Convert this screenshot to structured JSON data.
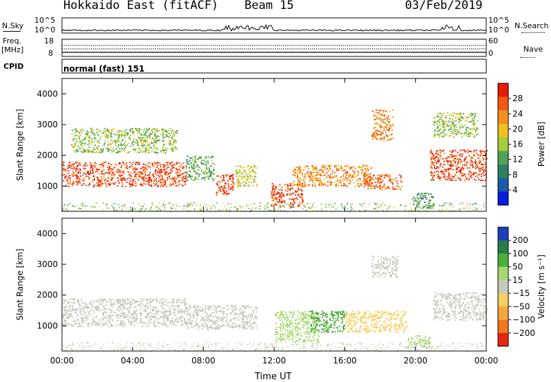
{
  "header": {
    "station": "Hokkaido East (fitACF)",
    "beam": "Beam 15",
    "date": "03/Feb/2019"
  },
  "params": {
    "nsky_label": "N.Sky",
    "nsky_ticks": [
      "10^5",
      "10^0"
    ],
    "nsearch_label": "N.Search",
    "nsearch_ticks": [
      "10^5",
      "10^0"
    ],
    "freq_label_line1": "Freq.",
    "freq_label_line2": "[MHz]",
    "freq_ticks": [
      "18",
      "8"
    ],
    "nave_label": "Nave",
    "nave_ticks": [
      "60",
      "0"
    ],
    "cpid_label": "CPID",
    "cpid_text": "normal (fast) 151"
  },
  "colors": {
    "power_scale": [
      "#0a1ae0",
      "#1f5aa8",
      "#2e8060",
      "#52a256",
      "#a4cd3c",
      "#f0c020",
      "#f39020",
      "#ee5a14",
      "#e81a0a"
    ],
    "velocity_scale": [
      "#1a3fb8",
      "#2a7a4a",
      "#4caf3a",
      "#a8d872",
      "#c8c8bc",
      "#f5d060",
      "#f4a640",
      "#f07820",
      "#e82412"
    ]
  },
  "chart_data": [
    {
      "type": "heatmap",
      "title": "Power",
      "xlabel": "Time UT",
      "ylabel": "Slant Range [km]",
      "x_ticks": [
        "00:00",
        "04:00",
        "08:00",
        "12:00",
        "16:00",
        "20:00",
        "00:00"
      ],
      "x_range_hours": [
        0,
        24
      ],
      "y_ticks": [
        1000,
        2000,
        3000,
        4000
      ],
      "ylim": [
        180,
        4500
      ],
      "colorbar_label": "Power [dB]",
      "colorbar_ticks": [
        "4",
        "8",
        "12",
        "16",
        "20",
        "24",
        "28"
      ],
      "clim": [
        0,
        30
      ],
      "regions": [
        {
          "t": [
            0.0,
            7.0
          ],
          "r": [
            1000,
            1800
          ],
          "value": 26
        },
        {
          "t": [
            0.5,
            6.5
          ],
          "r": [
            2100,
            2900
          ],
          "value": 14
        },
        {
          "t": [
            7.0,
            8.6
          ],
          "r": [
            1200,
            2000
          ],
          "value": 12
        },
        {
          "t": [
            8.7,
            9.7
          ],
          "r": [
            700,
            1400
          ],
          "value": 26
        },
        {
          "t": [
            9.8,
            11.0
          ],
          "r": [
            1000,
            1700
          ],
          "value": 16
        },
        {
          "t": [
            11.8,
            13.6
          ],
          "r": [
            350,
            1100
          ],
          "value": 26
        },
        {
          "t": [
            13.0,
            17.5
          ],
          "r": [
            1000,
            1700
          ],
          "value": 22
        },
        {
          "t": [
            17.0,
            19.2
          ],
          "r": [
            900,
            1400
          ],
          "value": 24
        },
        {
          "t": [
            17.5,
            18.7
          ],
          "r": [
            2500,
            3500
          ],
          "value": 22
        },
        {
          "t": [
            19.8,
            21.0
          ],
          "r": [
            300,
            800
          ],
          "value": 10
        },
        {
          "t": [
            20.8,
            24.0
          ],
          "r": [
            1200,
            2200
          ],
          "value": 26
        },
        {
          "t": [
            21.0,
            23.5
          ],
          "r": [
            2600,
            3400
          ],
          "value": 14
        }
      ]
    },
    {
      "type": "heatmap",
      "title": "Velocity",
      "xlabel": "Time UT",
      "ylabel": "Slant Range [km]",
      "x_ticks": [
        "00:00",
        "04:00",
        "08:00",
        "12:00",
        "16:00",
        "20:00",
        "00:00"
      ],
      "x_range_hours": [
        0,
        24
      ],
      "y_ticks": [
        1000,
        2000,
        3000,
        4000
      ],
      "ylim": [
        180,
        4500
      ],
      "colorbar_label": "Velocity [m s⁻¹]",
      "colorbar_ticks": [
        "200",
        "100",
        "50",
        "15",
        "−15",
        "−50",
        "−100",
        "−200"
      ],
      "clim": [
        -250,
        250
      ],
      "regions": [
        {
          "t": [
            0.0,
            7.0
          ],
          "r": [
            1000,
            1900
          ],
          "value": 0
        },
        {
          "t": [
            7.0,
            11.0
          ],
          "r": [
            900,
            1700
          ],
          "value": 0
        },
        {
          "t": [
            12.0,
            14.5
          ],
          "r": [
            500,
            1500
          ],
          "value": 60
        },
        {
          "t": [
            14.0,
            16.0
          ],
          "r": [
            800,
            1500
          ],
          "value": 120
        },
        {
          "t": [
            16.0,
            19.5
          ],
          "r": [
            800,
            1500
          ],
          "value": -60
        },
        {
          "t": [
            17.5,
            19.0
          ],
          "r": [
            2600,
            3300
          ],
          "value": 0
        },
        {
          "t": [
            19.5,
            20.8
          ],
          "r": [
            300,
            700
          ],
          "value": 70
        },
        {
          "t": [
            21.0,
            24.0
          ],
          "r": [
            1200,
            2100
          ],
          "value": 0
        }
      ]
    }
  ],
  "footer": {
    "time_axis_label": "Time UT"
  }
}
